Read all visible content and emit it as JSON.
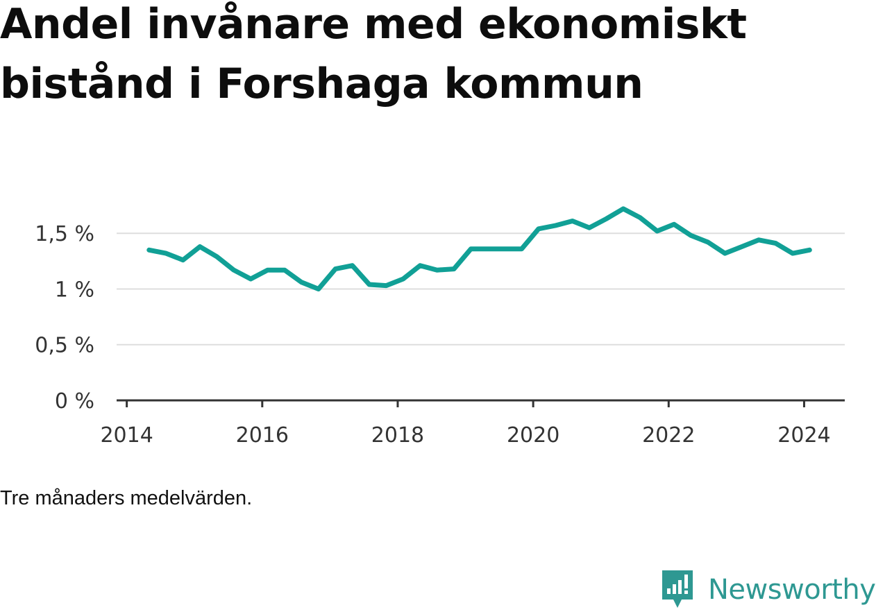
{
  "title_line1": "Andel invånare med ekonomiskt",
  "title_line2": "bistånd i Forshaga kommun",
  "note": "Tre månaders medelvärden.",
  "brand": {
    "name": "Newsworthy",
    "icon": "newsworthy-logo-icon",
    "color": "#2e9892"
  },
  "chart_data": {
    "type": "line",
    "title": "Andel invånare med ekonomiskt bistånd i Forshaga kommun",
    "xlabel": "",
    "ylabel": "",
    "ylim": [
      0,
      1.85
    ],
    "xlim": [
      2013.85,
      2024.6
    ],
    "line_color": "#11a096",
    "grid": true,
    "y_ticks": [
      {
        "value": 0,
        "label": "0 %"
      },
      {
        "value": 0.5,
        "label": "0,5 %"
      },
      {
        "value": 1,
        "label": "1 %"
      },
      {
        "value": 1.5,
        "label": "1,5 %"
      }
    ],
    "x_ticks": [
      {
        "value": 2014,
        "label": "2014"
      },
      {
        "value": 2016,
        "label": "2016"
      },
      {
        "value": 2018,
        "label": "2018"
      },
      {
        "value": 2020,
        "label": "2020"
      },
      {
        "value": 2022,
        "label": "2022"
      },
      {
        "value": 2024,
        "label": "2024"
      }
    ],
    "series": [
      {
        "x": [
          2014.33,
          2014.58,
          2014.83,
          2015.08,
          2015.33,
          2015.58,
          2015.83,
          2016.08,
          2016.33,
          2016.58,
          2016.83,
          2017.08,
          2017.33,
          2017.58,
          2017.83,
          2018.08,
          2018.33,
          2018.58,
          2018.83,
          2019.08,
          2019.33,
          2019.58,
          2019.83,
          2020.08,
          2020.33,
          2020.58,
          2020.83,
          2021.08,
          2021.33,
          2021.58,
          2021.83,
          2022.08,
          2022.33,
          2022.58,
          2022.83,
          2023.08,
          2023.33,
          2023.58,
          2023.83,
          2024.08
        ],
        "y": [
          1.35,
          1.32,
          1.26,
          1.38,
          1.29,
          1.17,
          1.09,
          1.17,
          1.17,
          1.06,
          1.0,
          1.18,
          1.21,
          1.04,
          1.03,
          1.09,
          1.21,
          1.17,
          1.18,
          1.36,
          1.36,
          1.36,
          1.36,
          1.54,
          1.57,
          1.61,
          1.55,
          1.63,
          1.72,
          1.64,
          1.52,
          1.58,
          1.48,
          1.42,
          1.32,
          1.38,
          1.44,
          1.41,
          1.32,
          1.35
        ]
      }
    ]
  }
}
